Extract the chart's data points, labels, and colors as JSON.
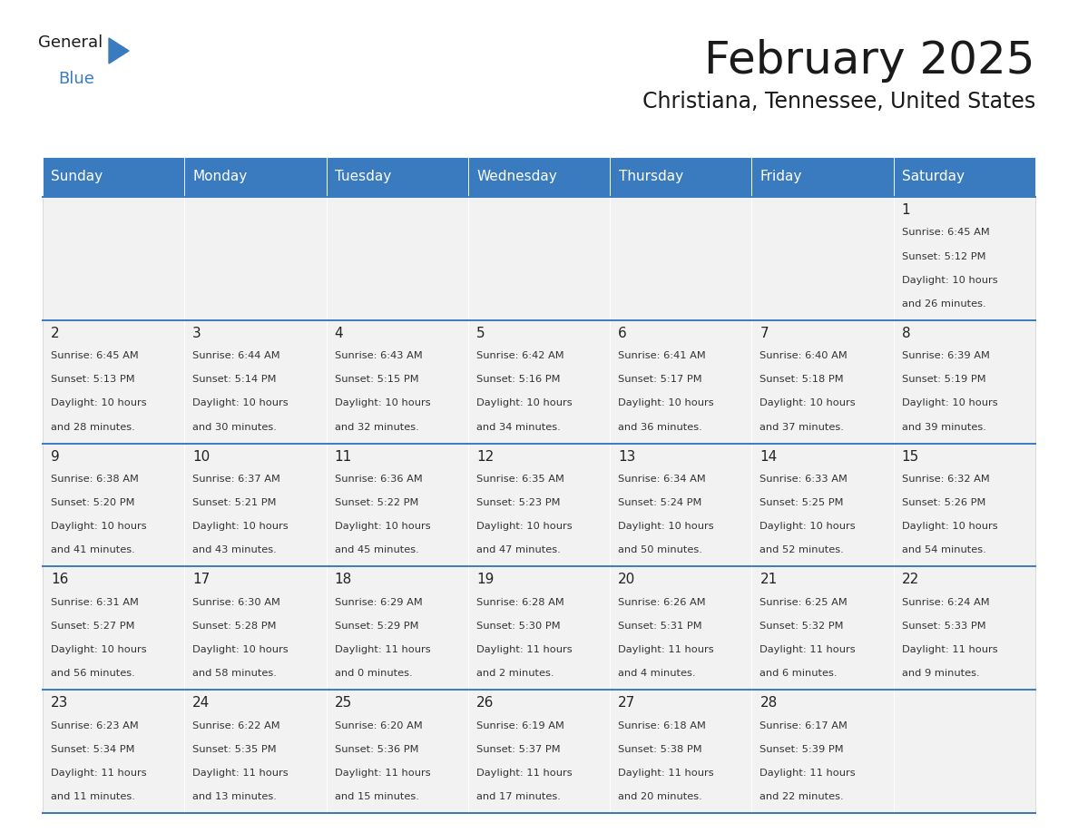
{
  "title": "February 2025",
  "subtitle": "Christiana, Tennessee, United States",
  "header_color": "#3a7bbf",
  "header_text_color": "#ffffff",
  "cell_bg_color": "#f0f0f0",
  "border_color": "#3a7bbf",
  "days_of_week": [
    "Sunday",
    "Monday",
    "Tuesday",
    "Wednesday",
    "Thursday",
    "Friday",
    "Saturday"
  ],
  "calendar_data": [
    [
      null,
      null,
      null,
      null,
      null,
      null,
      {
        "day": "1",
        "sunrise": "6:45 AM",
        "sunset": "5:12 PM",
        "daylight_h": "10 hours",
        "daylight_m": "and 26 minutes."
      }
    ],
    [
      {
        "day": "2",
        "sunrise": "6:45 AM",
        "sunset": "5:13 PM",
        "daylight_h": "10 hours",
        "daylight_m": "and 28 minutes."
      },
      {
        "day": "3",
        "sunrise": "6:44 AM",
        "sunset": "5:14 PM",
        "daylight_h": "10 hours",
        "daylight_m": "and 30 minutes."
      },
      {
        "day": "4",
        "sunrise": "6:43 AM",
        "sunset": "5:15 PM",
        "daylight_h": "10 hours",
        "daylight_m": "and 32 minutes."
      },
      {
        "day": "5",
        "sunrise": "6:42 AM",
        "sunset": "5:16 PM",
        "daylight_h": "10 hours",
        "daylight_m": "and 34 minutes."
      },
      {
        "day": "6",
        "sunrise": "6:41 AM",
        "sunset": "5:17 PM",
        "daylight_h": "10 hours",
        "daylight_m": "and 36 minutes."
      },
      {
        "day": "7",
        "sunrise": "6:40 AM",
        "sunset": "5:18 PM",
        "daylight_h": "10 hours",
        "daylight_m": "and 37 minutes."
      },
      {
        "day": "8",
        "sunrise": "6:39 AM",
        "sunset": "5:19 PM",
        "daylight_h": "10 hours",
        "daylight_m": "and 39 minutes."
      }
    ],
    [
      {
        "day": "9",
        "sunrise": "6:38 AM",
        "sunset": "5:20 PM",
        "daylight_h": "10 hours",
        "daylight_m": "and 41 minutes."
      },
      {
        "day": "10",
        "sunrise": "6:37 AM",
        "sunset": "5:21 PM",
        "daylight_h": "10 hours",
        "daylight_m": "and 43 minutes."
      },
      {
        "day": "11",
        "sunrise": "6:36 AM",
        "sunset": "5:22 PM",
        "daylight_h": "10 hours",
        "daylight_m": "and 45 minutes."
      },
      {
        "day": "12",
        "sunrise": "6:35 AM",
        "sunset": "5:23 PM",
        "daylight_h": "10 hours",
        "daylight_m": "and 47 minutes."
      },
      {
        "day": "13",
        "sunrise": "6:34 AM",
        "sunset": "5:24 PM",
        "daylight_h": "10 hours",
        "daylight_m": "and 50 minutes."
      },
      {
        "day": "14",
        "sunrise": "6:33 AM",
        "sunset": "5:25 PM",
        "daylight_h": "10 hours",
        "daylight_m": "and 52 minutes."
      },
      {
        "day": "15",
        "sunrise": "6:32 AM",
        "sunset": "5:26 PM",
        "daylight_h": "10 hours",
        "daylight_m": "and 54 minutes."
      }
    ],
    [
      {
        "day": "16",
        "sunrise": "6:31 AM",
        "sunset": "5:27 PM",
        "daylight_h": "10 hours",
        "daylight_m": "and 56 minutes."
      },
      {
        "day": "17",
        "sunrise": "6:30 AM",
        "sunset": "5:28 PM",
        "daylight_h": "10 hours",
        "daylight_m": "and 58 minutes."
      },
      {
        "day": "18",
        "sunrise": "6:29 AM",
        "sunset": "5:29 PM",
        "daylight_h": "11 hours",
        "daylight_m": "and 0 minutes."
      },
      {
        "day": "19",
        "sunrise": "6:28 AM",
        "sunset": "5:30 PM",
        "daylight_h": "11 hours",
        "daylight_m": "and 2 minutes."
      },
      {
        "day": "20",
        "sunrise": "6:26 AM",
        "sunset": "5:31 PM",
        "daylight_h": "11 hours",
        "daylight_m": "and 4 minutes."
      },
      {
        "day": "21",
        "sunrise": "6:25 AM",
        "sunset": "5:32 PM",
        "daylight_h": "11 hours",
        "daylight_m": "and 6 minutes."
      },
      {
        "day": "22",
        "sunrise": "6:24 AM",
        "sunset": "5:33 PM",
        "daylight_h": "11 hours",
        "daylight_m": "and 9 minutes."
      }
    ],
    [
      {
        "day": "23",
        "sunrise": "6:23 AM",
        "sunset": "5:34 PM",
        "daylight_h": "11 hours",
        "daylight_m": "and 11 minutes."
      },
      {
        "day": "24",
        "sunrise": "6:22 AM",
        "sunset": "5:35 PM",
        "daylight_h": "11 hours",
        "daylight_m": "and 13 minutes."
      },
      {
        "day": "25",
        "sunrise": "6:20 AM",
        "sunset": "5:36 PM",
        "daylight_h": "11 hours",
        "daylight_m": "and 15 minutes."
      },
      {
        "day": "26",
        "sunrise": "6:19 AM",
        "sunset": "5:37 PM",
        "daylight_h": "11 hours",
        "daylight_m": "and 17 minutes."
      },
      {
        "day": "27",
        "sunrise": "6:18 AM",
        "sunset": "5:38 PM",
        "daylight_h": "11 hours",
        "daylight_m": "and 20 minutes."
      },
      {
        "day": "28",
        "sunrise": "6:17 AM",
        "sunset": "5:39 PM",
        "daylight_h": "11 hours",
        "daylight_m": "and 22 minutes."
      },
      null
    ]
  ],
  "logo_text_general": "General",
  "logo_text_blue": "Blue",
  "logo_color_general": "#1a1a1a",
  "logo_color_blue": "#3a7bbf",
  "logo_triangle_color": "#3a7bbf",
  "title_fontsize": 36,
  "subtitle_fontsize": 17,
  "header_fontsize": 11,
  "day_num_fontsize": 11,
  "cell_text_fontsize": 8.2
}
